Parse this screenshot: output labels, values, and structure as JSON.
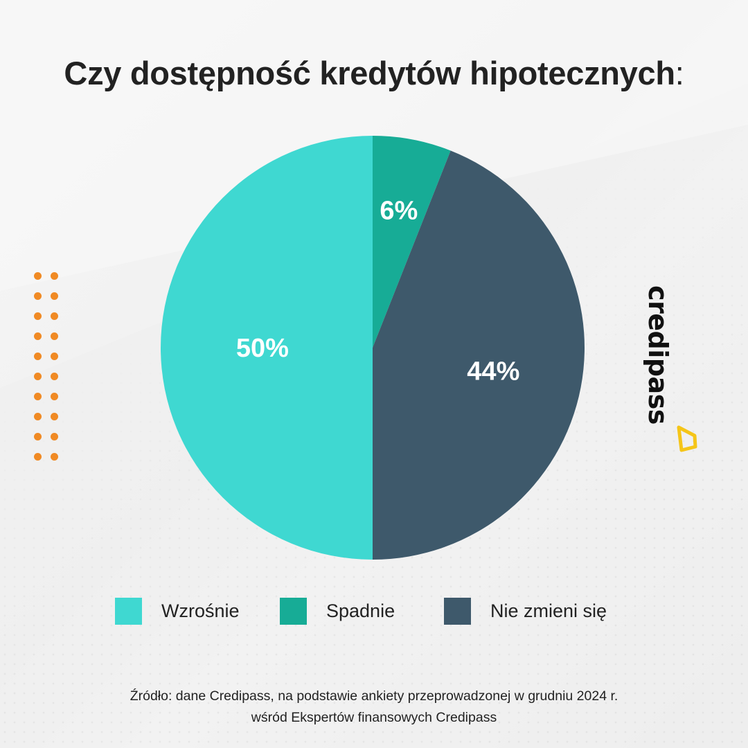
{
  "title": "Czy dostępność kredytów hipotecznych",
  "title_suffix": ":",
  "brand": {
    "logo_text": "credipass",
    "logo_accent_color": "#f5c518",
    "decor_dot_color": "#f08a24"
  },
  "chart_data": {
    "type": "pie",
    "start": "top, clockwise",
    "slices": [
      {
        "label": "Spadnie",
        "value": 6,
        "value_label": "6%",
        "color": "#17ac96"
      },
      {
        "label": "Nie zmieni się",
        "value": 44,
        "value_label": "44%",
        "color": "#3e596b"
      },
      {
        "label": "Wzrośnie",
        "value": 50,
        "value_label": "50%",
        "color": "#3fd8d1"
      }
    ],
    "legend_placement": "bottom",
    "legend_order": [
      "Wzrośnie",
      "Spadnie",
      "Nie zmieni się"
    ]
  },
  "source": {
    "line1": "Źródło: dane Credipass, na podstawie ankiety przeprowadzonej w grudniu 2024 r.",
    "line2": "wśród Ekspertów finansowych Credipass"
  }
}
